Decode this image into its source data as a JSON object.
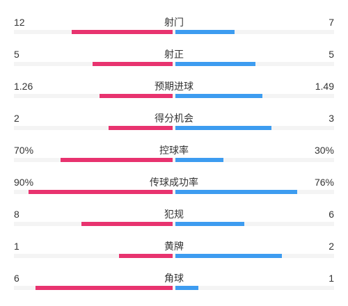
{
  "colors": {
    "home": "#e8336f",
    "away": "#3d9cf0"
  },
  "stats": [
    {
      "label": "射门",
      "left": "12",
      "right": "7",
      "left_fill": 0.632,
      "right_fill": 0.368
    },
    {
      "label": "射正",
      "left": "5",
      "right": "5",
      "left_fill": 0.5,
      "right_fill": 0.5
    },
    {
      "label": "预期进球",
      "left": "1.26",
      "right": "1.49",
      "left_fill": 0.458,
      "right_fill": 0.542
    },
    {
      "label": "得分机会",
      "left": "2",
      "right": "3",
      "left_fill": 0.4,
      "right_fill": 0.6
    },
    {
      "label": "控球率",
      "left": "70%",
      "right": "30%",
      "left_fill": 0.7,
      "right_fill": 0.3
    },
    {
      "label": "传球成功率",
      "left": "90%",
      "right": "76%",
      "left_fill": 0.9,
      "right_fill": 0.76
    },
    {
      "label": "犯规",
      "left": "8",
      "right": "6",
      "left_fill": 0.571,
      "right_fill": 0.429
    },
    {
      "label": "黄牌",
      "left": "1",
      "right": "2",
      "left_fill": 0.333,
      "right_fill": 0.667
    },
    {
      "label": "角球",
      "left": "6",
      "right": "1",
      "left_fill": 0.857,
      "right_fill": 0.143
    }
  ]
}
